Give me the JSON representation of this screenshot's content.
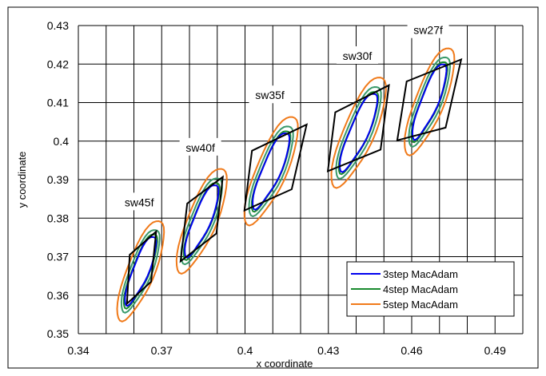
{
  "chart_data": {
    "type": "line",
    "title": "",
    "xlabel": "x coordinate",
    "ylabel": "y coordinate",
    "xlim": [
      0.34,
      0.5
    ],
    "ylim": [
      0.35,
      0.43
    ],
    "xticks": [
      0.34,
      0.37,
      0.4,
      0.43,
      0.46,
      0.49
    ],
    "xtick_labels": [
      "0.34",
      "0.37",
      "0.4",
      "0.43",
      "0.46",
      "0.49"
    ],
    "yticks": [
      0.35,
      0.36,
      0.37,
      0.38,
      0.39,
      0.4,
      0.41,
      0.42,
      0.43
    ],
    "ytick_labels": [
      "0.35",
      "0.36",
      "0.37",
      "0.38",
      "0.39",
      "0.4",
      "0.41",
      "0.42",
      "0.43"
    ],
    "grid": true,
    "legend_position": "bottom-right",
    "legend": [
      {
        "label": "3step  MacAdam",
        "color": "#0000ee"
      },
      {
        "label": "4step  MacAdam",
        "color": "#1a8a2e"
      },
      {
        "label": "5step  MacAdam",
        "color": "#f07a1a"
      }
    ],
    "ellipse_colors": {
      "3step": "#0000ee",
      "4step_outer": "#3a9a6a",
      "4step_inner": "#1a8a2e",
      "5step": "#f07a1a"
    },
    "quad_color": "#000000",
    "groups": [
      {
        "label": "sw45f",
        "center": [
          0.3625,
          0.3665
        ],
        "ellipses": {
          "3step": [
            0.0027,
            0.0102,
            30
          ],
          "4step": [
            0.0037,
            0.0122,
            30
          ],
          "5step": [
            0.0047,
            0.0148,
            30
          ]
        },
        "quad": [
          [
            0.3575,
            0.3578
          ],
          [
            0.3585,
            0.3705
          ],
          [
            0.368,
            0.3765
          ],
          [
            0.3662,
            0.3635
          ]
        ]
      },
      {
        "label": "sw40f",
        "center": [
          0.3845,
          0.3795
        ],
        "ellipses": {
          "3step": [
            0.0029,
            0.0108,
            31
          ],
          "4step": [
            0.0039,
            0.0128,
            31
          ],
          "5step": [
            0.0049,
            0.0156,
            31
          ]
        },
        "quad": [
          [
            0.3768,
            0.3688
          ],
          [
            0.3792,
            0.3838
          ],
          [
            0.392,
            0.3907
          ],
          [
            0.3897,
            0.376
          ]
        ]
      },
      {
        "label": "sw35f",
        "center": [
          0.4095,
          0.3925
        ],
        "ellipses": {
          "3step": [
            0.0031,
            0.0115,
            32
          ],
          "4step": [
            0.0041,
            0.0135,
            32
          ],
          "5step": [
            0.0051,
            0.0163,
            32
          ]
        },
        "quad": [
          [
            0.3998,
            0.382
          ],
          [
            0.4025,
            0.3975
          ],
          [
            0.4222,
            0.4043
          ],
          [
            0.4168,
            0.3875
          ]
        ]
      },
      {
        "label": "sw30f",
        "center": [
          0.441,
          0.4025
        ],
        "ellipses": {
          "3step": [
            0.0031,
            0.0118,
            32
          ],
          "4step": [
            0.0041,
            0.0138,
            32
          ],
          "5step": [
            0.0052,
            0.0166,
            32
          ]
        },
        "quad": [
          [
            0.4298,
            0.3922
          ],
          [
            0.4325,
            0.4075
          ],
          [
            0.4518,
            0.4145
          ],
          [
            0.4488,
            0.3978
          ]
        ]
      },
      {
        "label": "sw27f",
        "center": [
          0.4665,
          0.4105
        ],
        "ellipses": {
          "3step": [
            0.0029,
            0.0112,
            30
          ],
          "4step": [
            0.0039,
            0.0132,
            30
          ],
          "5step": [
            0.0049,
            0.0158,
            30
          ]
        },
        "quad": [
          [
            0.4548,
            0.4002
          ],
          [
            0.4582,
            0.4155
          ],
          [
            0.4778,
            0.4212
          ],
          [
            0.4722,
            0.4035
          ]
        ]
      }
    ]
  }
}
